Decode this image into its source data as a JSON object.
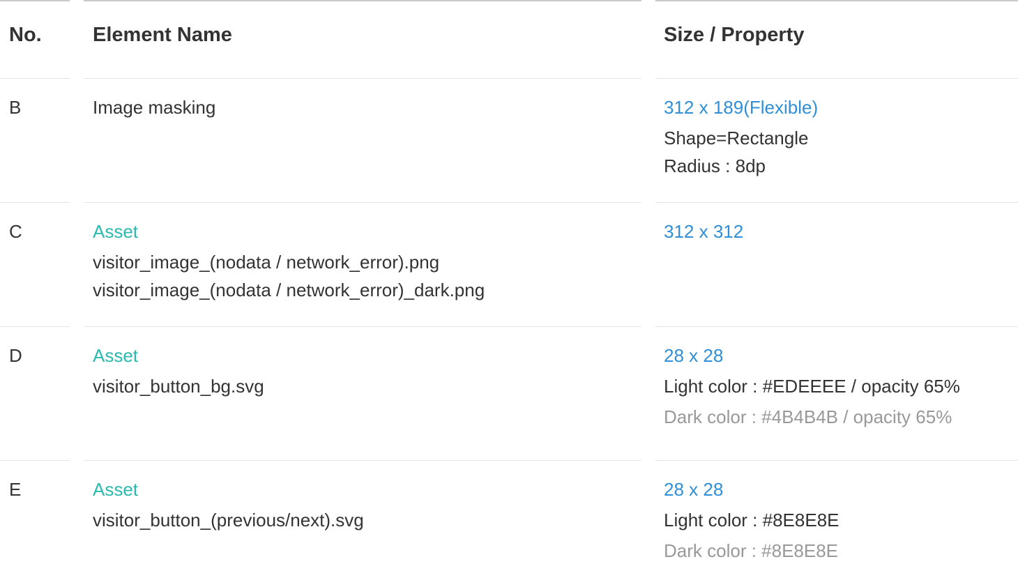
{
  "colors": {
    "text": "#333333",
    "muted": "#999999",
    "size_blue": "#2f8fd8",
    "asset_teal": "#2bbbad",
    "rule": "#e4e4e4"
  },
  "headers": {
    "no": "No.",
    "element_name": "Element Name",
    "size_property": "Size / Property"
  },
  "rows": [
    {
      "no": "B",
      "name_label": "",
      "name_lines": [
        "Image masking"
      ],
      "size": "312 x 189(Flexible)",
      "properties": [
        "Shape=Rectangle",
        "Radius : 8dp"
      ],
      "dark_property": ""
    },
    {
      "no": "C",
      "name_label": "Asset",
      "name_lines": [
        "visitor_image_(nodata / network_error).png",
        "visitor_image_(nodata / network_error)_dark.png"
      ],
      "size": "312 x 312",
      "properties": [],
      "dark_property": ""
    },
    {
      "no": "D",
      "name_label": "Asset",
      "name_lines": [
        "visitor_button_bg.svg"
      ],
      "size": "28 x 28",
      "properties": [
        "Light color : #EDEEEE / opacity 65%"
      ],
      "dark_property": "Dark color : #4B4B4B / opacity 65%"
    },
    {
      "no": "E",
      "name_label": "Asset",
      "name_lines": [
        "visitor_button_(previous/next).svg"
      ],
      "size": "28 x 28",
      "properties": [
        "Light color : #8E8E8E"
      ],
      "dark_property": "Dark color : #8E8E8E"
    }
  ]
}
